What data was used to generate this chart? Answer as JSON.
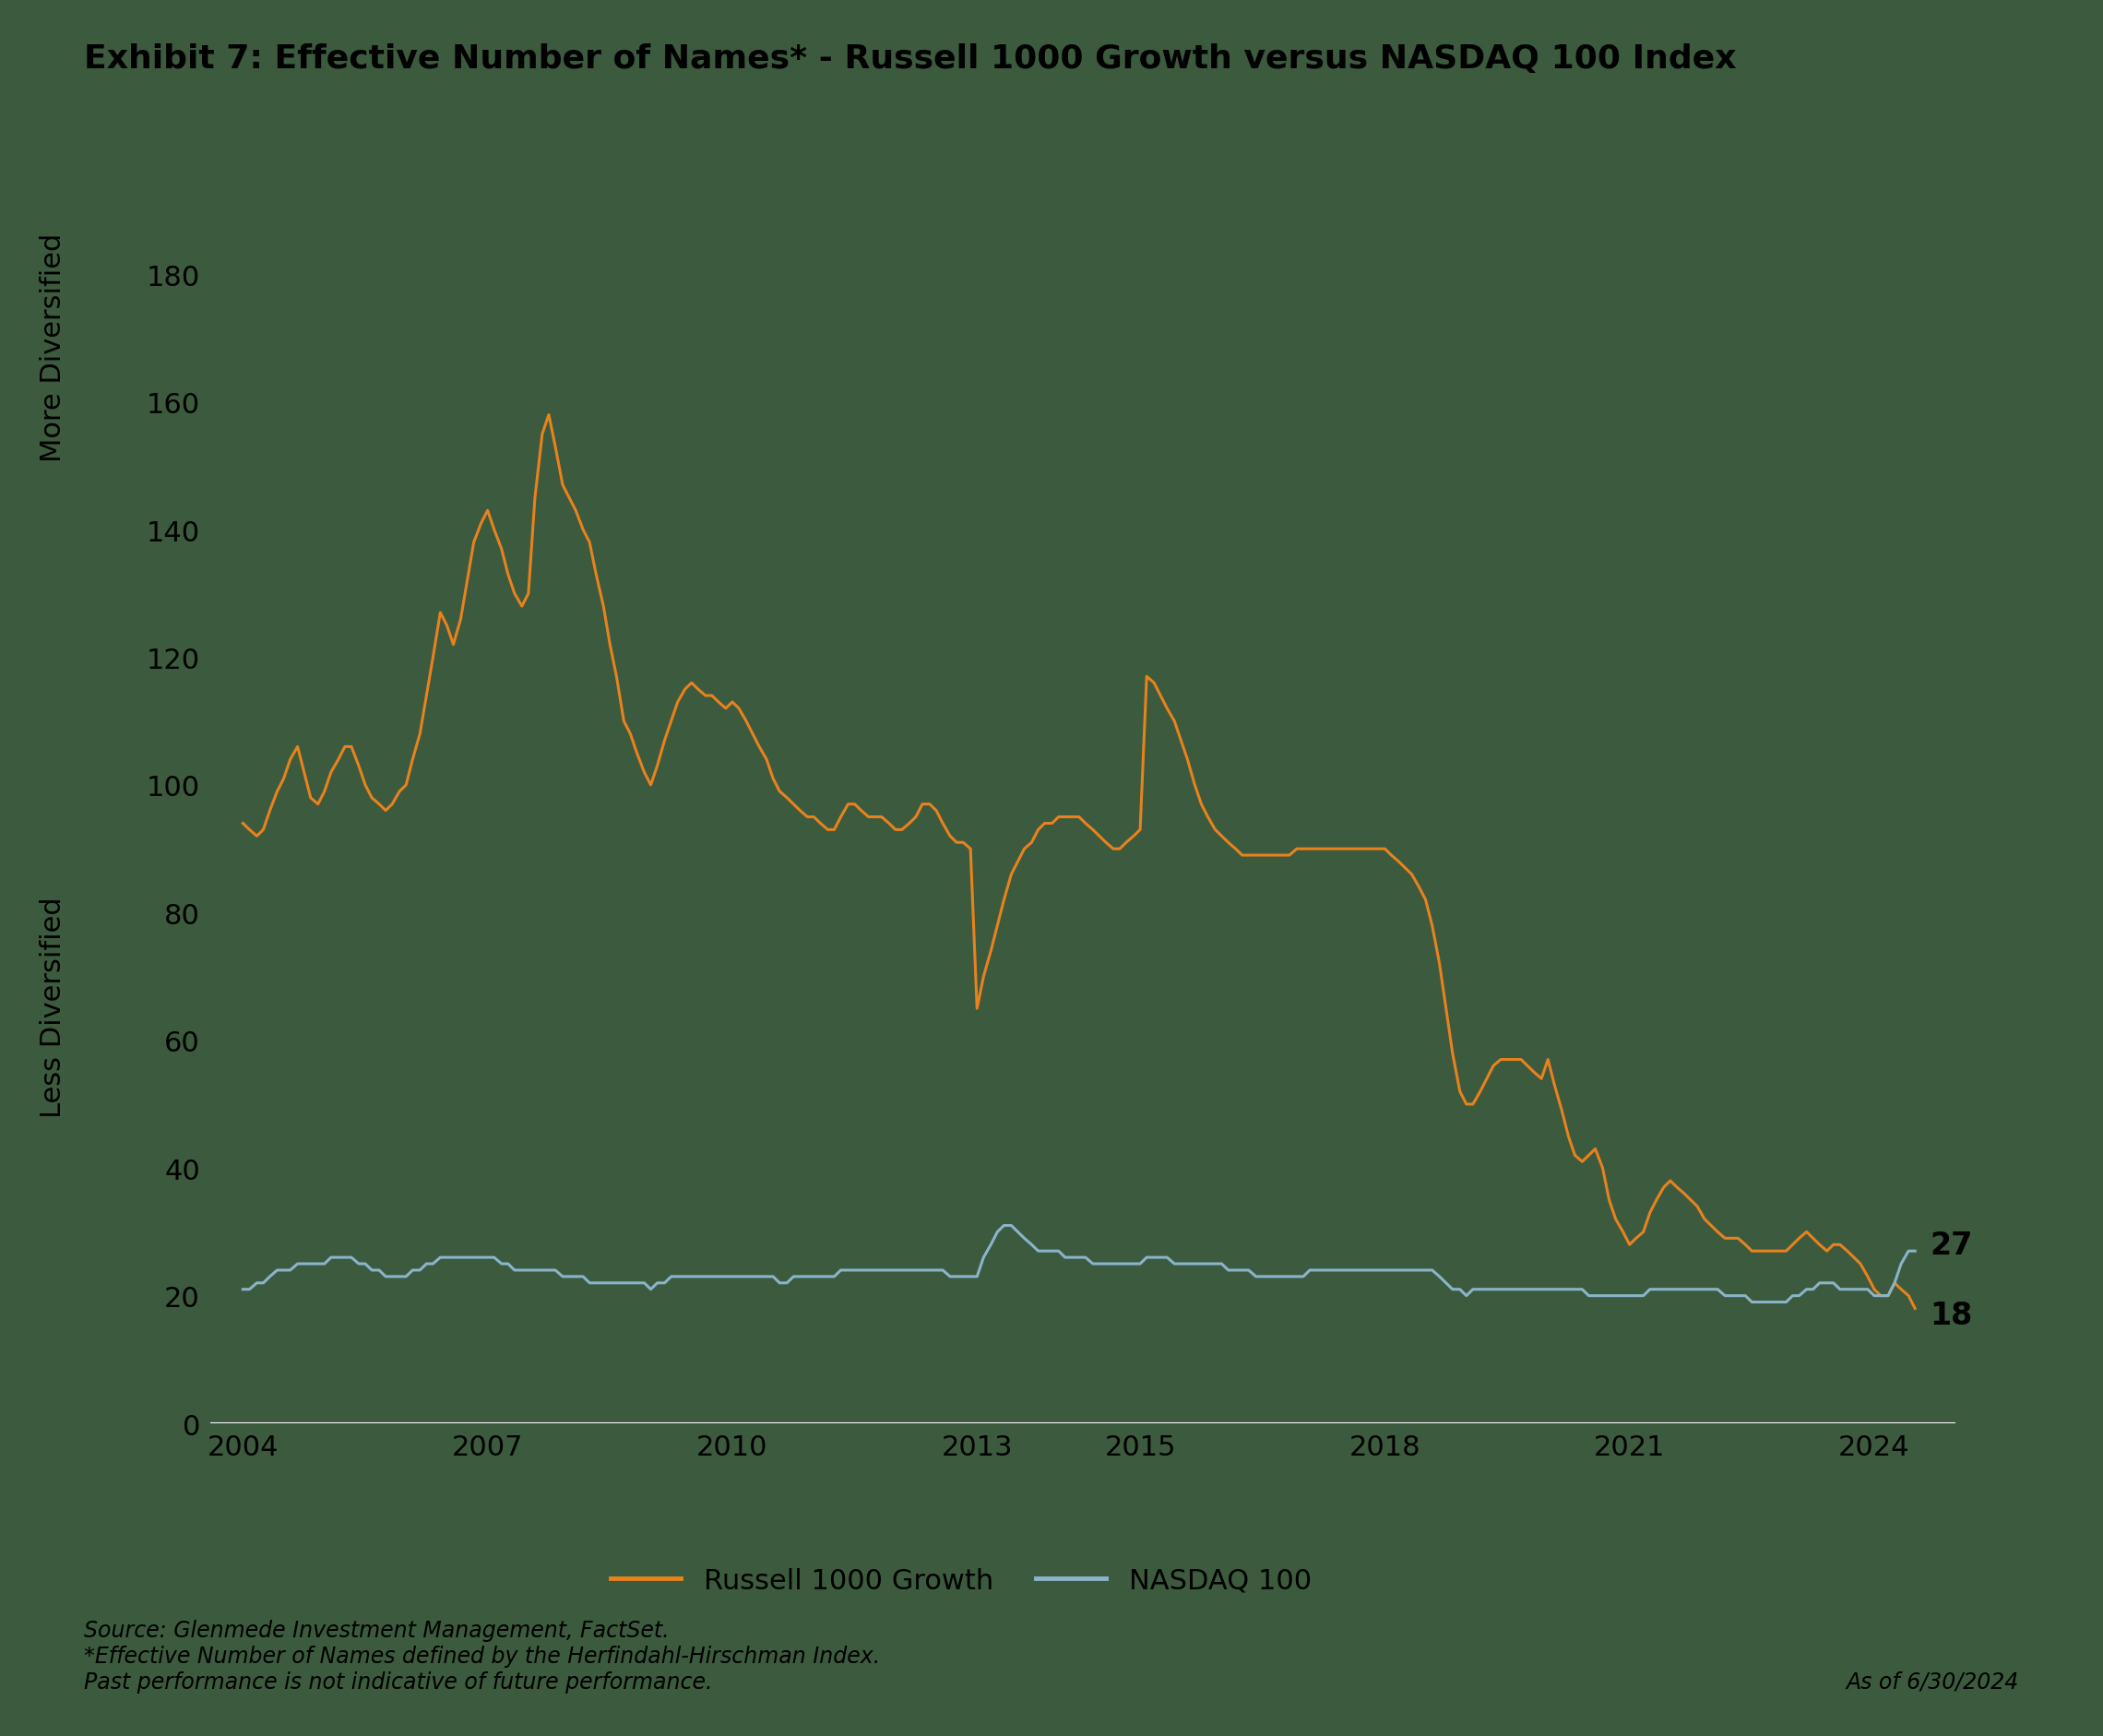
{
  "title": "Exhibit 7: Effective Number of Names* - Russell 1000 Growth versus NASDAQ 100 Index",
  "background_color": "#3c5a3e",
  "line_color_r1000": "#e8821e",
  "line_color_nasdaq": "#8ab4c9",
  "ylabel_top": "More Diversified",
  "ylabel_bottom": "Less Diversified",
  "ylim": [
    0,
    185
  ],
  "yticks": [
    0,
    20,
    40,
    60,
    80,
    100,
    120,
    140,
    160,
    180
  ],
  "xtick_positions": [
    2004,
    2007,
    2010,
    2013,
    2015,
    2018,
    2021,
    2024
  ],
  "xlabel_years": [
    "2004",
    "2007",
    "2010",
    "2013",
    "2015",
    "2018",
    "2021",
    "2024"
  ],
  "end_label_r1000": "18",
  "end_label_nasdaq": "27",
  "legend_r1000": "Russell 1000 Growth",
  "legend_nasdaq": "NASDAQ 100",
  "footnote": "Source: Glenmede Investment Management, FactSet.\n*Effective Number of Names defined by the Herfindahl-Hirschman Index.\nPast performance is not indicative of future performance.",
  "date_label": "As of 6/30/2024",
  "russell_1000_growth_x": [
    2004.0,
    2004.08,
    2004.17,
    2004.25,
    2004.33,
    2004.42,
    2004.5,
    2004.58,
    2004.67,
    2004.75,
    2004.83,
    2004.92,
    2005.0,
    2005.08,
    2005.17,
    2005.25,
    2005.33,
    2005.42,
    2005.5,
    2005.58,
    2005.67,
    2005.75,
    2005.83,
    2005.92,
    2006.0,
    2006.08,
    2006.17,
    2006.25,
    2006.33,
    2006.42,
    2006.5,
    2006.58,
    2006.67,
    2006.75,
    2006.83,
    2006.92,
    2007.0,
    2007.08,
    2007.17,
    2007.25,
    2007.33,
    2007.42,
    2007.5,
    2007.58,
    2007.67,
    2007.75,
    2007.83,
    2007.92,
    2008.0,
    2008.08,
    2008.17,
    2008.25,
    2008.33,
    2008.42,
    2008.5,
    2008.58,
    2008.67,
    2008.75,
    2008.83,
    2008.92,
    2009.0,
    2009.08,
    2009.17,
    2009.25,
    2009.33,
    2009.42,
    2009.5,
    2009.58,
    2009.67,
    2009.75,
    2009.83,
    2009.92,
    2010.0,
    2010.08,
    2010.17,
    2010.25,
    2010.33,
    2010.42,
    2010.5,
    2010.58,
    2010.67,
    2010.75,
    2010.83,
    2010.92,
    2011.0,
    2011.08,
    2011.17,
    2011.25,
    2011.33,
    2011.42,
    2011.5,
    2011.58,
    2011.67,
    2011.75,
    2011.83,
    2011.92,
    2012.0,
    2012.08,
    2012.17,
    2012.25,
    2012.33,
    2012.42,
    2012.5,
    2012.58,
    2012.67,
    2012.75,
    2012.83,
    2012.92,
    2013.0,
    2013.08,
    2013.17,
    2013.25,
    2013.33,
    2013.42,
    2013.5,
    2013.58,
    2013.67,
    2013.75,
    2013.83,
    2013.92,
    2014.0,
    2014.08,
    2014.17,
    2014.25,
    2014.33,
    2014.42,
    2014.5,
    2014.58,
    2014.67,
    2014.75,
    2014.83,
    2014.92,
    2015.0,
    2015.08,
    2015.17,
    2015.25,
    2015.33,
    2015.42,
    2015.5,
    2015.58,
    2015.67,
    2015.75,
    2015.83,
    2015.92,
    2016.0,
    2016.08,
    2016.17,
    2016.25,
    2016.33,
    2016.42,
    2016.5,
    2016.58,
    2016.67,
    2016.75,
    2016.83,
    2016.92,
    2017.0,
    2017.08,
    2017.17,
    2017.25,
    2017.33,
    2017.42,
    2017.5,
    2017.58,
    2017.67,
    2017.75,
    2017.83,
    2017.92,
    2018.0,
    2018.08,
    2018.17,
    2018.25,
    2018.33,
    2018.42,
    2018.5,
    2018.58,
    2018.67,
    2018.75,
    2018.83,
    2018.92,
    2019.0,
    2019.08,
    2019.17,
    2019.25,
    2019.33,
    2019.42,
    2019.5,
    2019.58,
    2019.67,
    2019.75,
    2019.83,
    2019.92,
    2020.0,
    2020.08,
    2020.17,
    2020.25,
    2020.33,
    2020.42,
    2020.5,
    2020.58,
    2020.67,
    2020.75,
    2020.83,
    2020.92,
    2021.0,
    2021.08,
    2021.17,
    2021.25,
    2021.33,
    2021.42,
    2021.5,
    2021.58,
    2021.67,
    2021.75,
    2021.83,
    2021.92,
    2022.0,
    2022.08,
    2022.17,
    2022.25,
    2022.33,
    2022.42,
    2022.5,
    2022.58,
    2022.67,
    2022.75,
    2022.83,
    2022.92,
    2023.0,
    2023.08,
    2023.17,
    2023.25,
    2023.33,
    2023.42,
    2023.5,
    2023.58,
    2023.67,
    2023.75,
    2023.83,
    2023.92,
    2024.0,
    2024.08,
    2024.17,
    2024.25,
    2024.33,
    2024.42,
    2024.5
  ],
  "russell_1000_growth_y": [
    94,
    93,
    92,
    93,
    96,
    99,
    101,
    104,
    106,
    102,
    98,
    97,
    99,
    102,
    104,
    106,
    106,
    103,
    100,
    98,
    97,
    96,
    97,
    99,
    100,
    104,
    108,
    114,
    120,
    127,
    125,
    122,
    126,
    132,
    138,
    141,
    143,
    140,
    137,
    133,
    130,
    128,
    130,
    145,
    155,
    158,
    153,
    147,
    145,
    143,
    140,
    138,
    133,
    128,
    122,
    117,
    110,
    108,
    105,
    102,
    100,
    103,
    107,
    110,
    113,
    115,
    116,
    115,
    114,
    114,
    113,
    112,
    113,
    112,
    110,
    108,
    106,
    104,
    101,
    99,
    98,
    97,
    96,
    95,
    95,
    94,
    93,
    93,
    95,
    97,
    97,
    96,
    95,
    95,
    95,
    94,
    93,
    93,
    94,
    95,
    97,
    97,
    96,
    94,
    92,
    91,
    91,
    90,
    65,
    70,
    74,
    78,
    82,
    86,
    88,
    90,
    91,
    93,
    94,
    94,
    95,
    95,
    95,
    95,
    94,
    93,
    92,
    91,
    90,
    90,
    91,
    92,
    93,
    117,
    116,
    114,
    112,
    110,
    107,
    104,
    100,
    97,
    95,
    93,
    92,
    91,
    90,
    89,
    89,
    89,
    89,
    89,
    89,
    89,
    89,
    90,
    90,
    90,
    90,
    90,
    90,
    90,
    90,
    90,
    90,
    90,
    90,
    90,
    90,
    89,
    88,
    87,
    86,
    84,
    82,
    78,
    72,
    65,
    58,
    52,
    50,
    50,
    52,
    54,
    56,
    57,
    57,
    57,
    57,
    56,
    55,
    54,
    57,
    53,
    49,
    45,
    42,
    41,
    42,
    43,
    40,
    35,
    32,
    30,
    28,
    29,
    30,
    33,
    35,
    37,
    38,
    37,
    36,
    35,
    34,
    32,
    31,
    30,
    29,
    29,
    29,
    28,
    27,
    27,
    27,
    27,
    27,
    27,
    28,
    29,
    30,
    29,
    28,
    27,
    28,
    28,
    27,
    26,
    25,
    23,
    21,
    20,
    20,
    22,
    21,
    20,
    18
  ],
  "nasdaq_100_x": [
    2004.0,
    2004.08,
    2004.17,
    2004.25,
    2004.33,
    2004.42,
    2004.5,
    2004.58,
    2004.67,
    2004.75,
    2004.83,
    2004.92,
    2005.0,
    2005.08,
    2005.17,
    2005.25,
    2005.33,
    2005.42,
    2005.5,
    2005.58,
    2005.67,
    2005.75,
    2005.83,
    2005.92,
    2006.0,
    2006.08,
    2006.17,
    2006.25,
    2006.33,
    2006.42,
    2006.5,
    2006.58,
    2006.67,
    2006.75,
    2006.83,
    2006.92,
    2007.0,
    2007.08,
    2007.17,
    2007.25,
    2007.33,
    2007.42,
    2007.5,
    2007.58,
    2007.67,
    2007.75,
    2007.83,
    2007.92,
    2008.0,
    2008.08,
    2008.17,
    2008.25,
    2008.33,
    2008.42,
    2008.5,
    2008.58,
    2008.67,
    2008.75,
    2008.83,
    2008.92,
    2009.0,
    2009.08,
    2009.17,
    2009.25,
    2009.33,
    2009.42,
    2009.5,
    2009.58,
    2009.67,
    2009.75,
    2009.83,
    2009.92,
    2010.0,
    2010.08,
    2010.17,
    2010.25,
    2010.33,
    2010.42,
    2010.5,
    2010.58,
    2010.67,
    2010.75,
    2010.83,
    2010.92,
    2011.0,
    2011.08,
    2011.17,
    2011.25,
    2011.33,
    2011.42,
    2011.5,
    2011.58,
    2011.67,
    2011.75,
    2011.83,
    2011.92,
    2012.0,
    2012.08,
    2012.17,
    2012.25,
    2012.33,
    2012.42,
    2012.5,
    2012.58,
    2012.67,
    2012.75,
    2012.83,
    2012.92,
    2013.0,
    2013.08,
    2013.17,
    2013.25,
    2013.33,
    2013.42,
    2013.5,
    2013.58,
    2013.67,
    2013.75,
    2013.83,
    2013.92,
    2014.0,
    2014.08,
    2014.17,
    2014.25,
    2014.33,
    2014.42,
    2014.5,
    2014.58,
    2014.67,
    2014.75,
    2014.83,
    2014.92,
    2015.0,
    2015.08,
    2015.17,
    2015.25,
    2015.33,
    2015.42,
    2015.5,
    2015.58,
    2015.67,
    2015.75,
    2015.83,
    2015.92,
    2016.0,
    2016.08,
    2016.17,
    2016.25,
    2016.33,
    2016.42,
    2016.5,
    2016.58,
    2016.67,
    2016.75,
    2016.83,
    2016.92,
    2017.0,
    2017.08,
    2017.17,
    2017.25,
    2017.33,
    2017.42,
    2017.5,
    2017.58,
    2017.67,
    2017.75,
    2017.83,
    2017.92,
    2018.0,
    2018.08,
    2018.17,
    2018.25,
    2018.33,
    2018.42,
    2018.5,
    2018.58,
    2018.67,
    2018.75,
    2018.83,
    2018.92,
    2019.0,
    2019.08,
    2019.17,
    2019.25,
    2019.33,
    2019.42,
    2019.5,
    2019.58,
    2019.67,
    2019.75,
    2019.83,
    2019.92,
    2020.0,
    2020.08,
    2020.17,
    2020.25,
    2020.33,
    2020.42,
    2020.5,
    2020.58,
    2020.67,
    2020.75,
    2020.83,
    2020.92,
    2021.0,
    2021.08,
    2021.17,
    2021.25,
    2021.33,
    2021.42,
    2021.5,
    2021.58,
    2021.67,
    2021.75,
    2021.83,
    2021.92,
    2022.0,
    2022.08,
    2022.17,
    2022.25,
    2022.33,
    2022.42,
    2022.5,
    2022.58,
    2022.67,
    2022.75,
    2022.83,
    2022.92,
    2023.0,
    2023.08,
    2023.17,
    2023.25,
    2023.33,
    2023.42,
    2023.5,
    2023.58,
    2023.67,
    2023.75,
    2023.83,
    2023.92,
    2024.0,
    2024.08,
    2024.17,
    2024.25,
    2024.33,
    2024.42,
    2024.5
  ],
  "nasdaq_100_y": [
    21,
    21,
    22,
    22,
    23,
    24,
    24,
    24,
    25,
    25,
    25,
    25,
    25,
    26,
    26,
    26,
    26,
    25,
    25,
    24,
    24,
    23,
    23,
    23,
    23,
    24,
    24,
    25,
    25,
    26,
    26,
    26,
    26,
    26,
    26,
    26,
    26,
    26,
    25,
    25,
    24,
    24,
    24,
    24,
    24,
    24,
    24,
    23,
    23,
    23,
    23,
    22,
    22,
    22,
    22,
    22,
    22,
    22,
    22,
    22,
    21,
    22,
    22,
    23,
    23,
    23,
    23,
    23,
    23,
    23,
    23,
    23,
    23,
    23,
    23,
    23,
    23,
    23,
    23,
    22,
    22,
    23,
    23,
    23,
    23,
    23,
    23,
    23,
    24,
    24,
    24,
    24,
    24,
    24,
    24,
    24,
    24,
    24,
    24,
    24,
    24,
    24,
    24,
    24,
    23,
    23,
    23,
    23,
    23,
    26,
    28,
    30,
    31,
    31,
    30,
    29,
    28,
    27,
    27,
    27,
    27,
    26,
    26,
    26,
    26,
    25,
    25,
    25,
    25,
    25,
    25,
    25,
    25,
    26,
    26,
    26,
    26,
    25,
    25,
    25,
    25,
    25,
    25,
    25,
    25,
    24,
    24,
    24,
    24,
    23,
    23,
    23,
    23,
    23,
    23,
    23,
    23,
    24,
    24,
    24,
    24,
    24,
    24,
    24,
    24,
    24,
    24,
    24,
    24,
    24,
    24,
    24,
    24,
    24,
    24,
    24,
    23,
    22,
    21,
    21,
    20,
    21,
    21,
    21,
    21,
    21,
    21,
    21,
    21,
    21,
    21,
    21,
    21,
    21,
    21,
    21,
    21,
    21,
    20,
    20,
    20,
    20,
    20,
    20,
    20,
    20,
    20,
    21,
    21,
    21,
    21,
    21,
    21,
    21,
    21,
    21,
    21,
    21,
    20,
    20,
    20,
    20,
    19,
    19,
    19,
    19,
    19,
    19,
    20,
    20,
    21,
    21,
    22,
    22,
    22,
    21,
    21,
    21,
    21,
    21,
    20,
    20,
    20,
    22,
    25,
    27,
    27
  ]
}
